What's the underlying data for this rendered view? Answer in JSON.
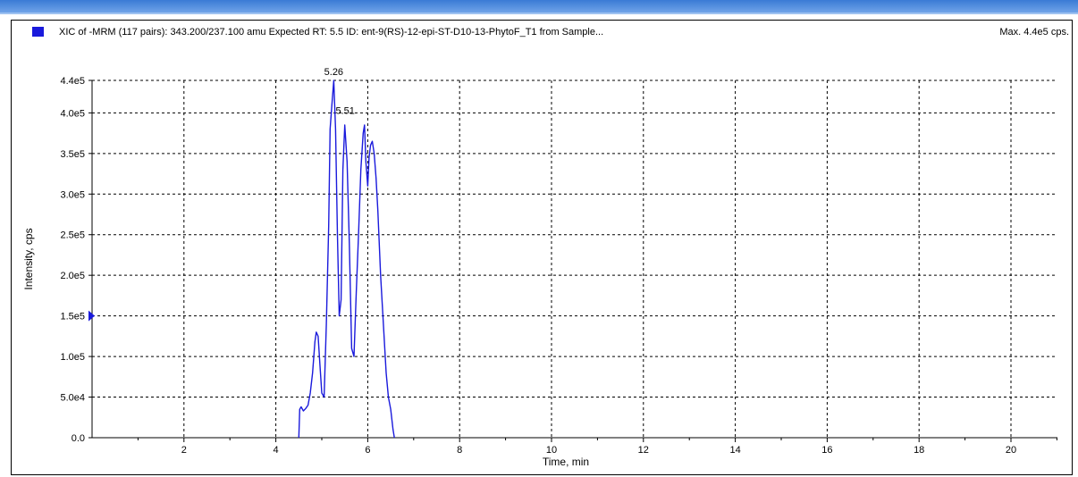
{
  "window": {
    "accent": "#3a7bd5"
  },
  "header": {
    "title": "XIC of -MRM (117 pairs): 343.200/237.100 amu Expected RT: 5.5 ID: ent-9(RS)-12-epi-ST-D10-13-PhytoF_T1 from Sample...",
    "max_label": "Max. 4.4e5 cps."
  },
  "chart_data": {
    "type": "line",
    "xlabel": "Time, min",
    "ylabel": "Intensity, cps",
    "xlim": [
      0,
      21
    ],
    "ylim": [
      0,
      440000
    ],
    "x_ticks": [
      2,
      4,
      6,
      8,
      10,
      12,
      14,
      16,
      18,
      20
    ],
    "y_ticks": [
      {
        "value": 0,
        "label": "0.0"
      },
      {
        "value": 50000,
        "label": "5.0e4"
      },
      {
        "value": 100000,
        "label": "1.0e5"
      },
      {
        "value": 150000,
        "label": "1.5e5"
      },
      {
        "value": 200000,
        "label": "2.0e5"
      },
      {
        "value": 250000,
        "label": "2.5e5"
      },
      {
        "value": 300000,
        "label": "3.0e5"
      },
      {
        "value": 350000,
        "label": "3.5e5"
      },
      {
        "value": 400000,
        "label": "4.0e5"
      },
      {
        "value": 440000,
        "label": "4.4e5"
      }
    ],
    "grid": true,
    "line_color": "#1a1adc",
    "y_marker_value": 150000,
    "series": [
      {
        "x": [
          4.5,
          4.52,
          4.55,
          4.6,
          4.65,
          4.7,
          4.75,
          4.8,
          4.85,
          4.88,
          4.92,
          4.96,
          5.0,
          5.05,
          5.1,
          5.15,
          5.18,
          5.22,
          5.26,
          5.3,
          5.34,
          5.38,
          5.42,
          5.46,
          5.5,
          5.55,
          5.6,
          5.65,
          5.7,
          5.75,
          5.8,
          5.85,
          5.9,
          5.93,
          5.96,
          6.0,
          6.03,
          6.06,
          6.1,
          6.14,
          6.18,
          6.22,
          6.28,
          6.34,
          6.4,
          6.45,
          6.5,
          6.55,
          6.58
        ],
        "y": [
          0,
          35000,
          38000,
          33000,
          36000,
          40000,
          55000,
          80000,
          118000,
          130000,
          125000,
          90000,
          55000,
          50000,
          140000,
          260000,
          380000,
          410000,
          440000,
          380000,
          250000,
          150000,
          170000,
          330000,
          385000,
          340000,
          240000,
          110000,
          100000,
          180000,
          250000,
          330000,
          375000,
          385000,
          340000,
          310000,
          345000,
          360000,
          365000,
          350000,
          320000,
          280000,
          200000,
          140000,
          80000,
          50000,
          35000,
          10000,
          0
        ]
      }
    ],
    "annotations": [
      {
        "x": 5.26,
        "y": 440000,
        "text": "5.26"
      },
      {
        "x": 5.51,
        "y": 392000,
        "text": "5.51"
      }
    ]
  }
}
